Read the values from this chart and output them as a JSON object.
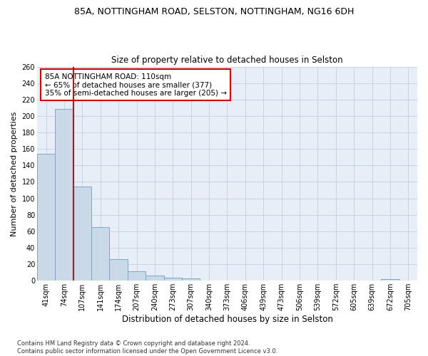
{
  "title1": "85A, NOTTINGHAM ROAD, SELSTON, NOTTINGHAM, NG16 6DH",
  "title2": "Size of property relative to detached houses in Selston",
  "xlabel": "Distribution of detached houses by size in Selston",
  "ylabel": "Number of detached properties",
  "footer": "Contains HM Land Registry data © Crown copyright and database right 2024.\nContains public sector information licensed under the Open Government Licence v3.0.",
  "bin_labels": [
    "41sqm",
    "74sqm",
    "107sqm",
    "141sqm",
    "174sqm",
    "207sqm",
    "240sqm",
    "273sqm",
    "307sqm",
    "340sqm",
    "373sqm",
    "406sqm",
    "439sqm",
    "473sqm",
    "506sqm",
    "539sqm",
    "572sqm",
    "605sqm",
    "639sqm",
    "672sqm",
    "705sqm"
  ],
  "bar_values": [
    154,
    209,
    114,
    65,
    26,
    11,
    6,
    4,
    3,
    0,
    0,
    0,
    0,
    0,
    0,
    0,
    0,
    0,
    0,
    2,
    0
  ],
  "bar_color": "#c9d9e8",
  "bar_edge_color": "#7aaac8",
  "vline_color": "#cc0000",
  "annotation_text": "85A NOTTINGHAM ROAD: 110sqm\n← 65% of detached houses are smaller (377)\n35% of semi-detached houses are larger (205) →",
  "annotation_box_color": "#ffffff",
  "annotation_box_edge": "#cc0000",
  "ylim": [
    0,
    260
  ],
  "yticks": [
    0,
    20,
    40,
    60,
    80,
    100,
    120,
    140,
    160,
    180,
    200,
    220,
    240,
    260
  ],
  "grid_color": "#c8d4e4",
  "bg_color": "#e8eef8",
  "title1_fontsize": 9,
  "title2_fontsize": 8.5,
  "annotation_fontsize": 7.5,
  "ylabel_fontsize": 8,
  "xlabel_fontsize": 8.5,
  "tick_fontsize": 7,
  "footer_fontsize": 6
}
